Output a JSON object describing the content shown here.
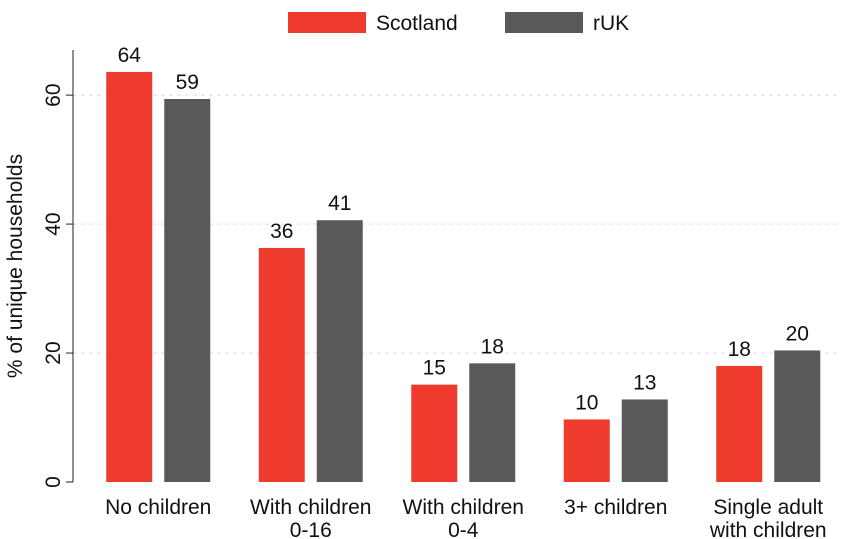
{
  "chart_data": {
    "type": "bar",
    "categories": [
      [
        "No children"
      ],
      [
        "With children",
        "0-16"
      ],
      [
        "With children",
        "0-4"
      ],
      [
        "3+ children"
      ],
      [
        "Single adult",
        "with children"
      ]
    ],
    "series": [
      {
        "name": "Scotland",
        "color": "#ee3b2e",
        "values": [
          63.6,
          36.3,
          15.1,
          9.7,
          18.0
        ],
        "value_labels": [
          "64",
          "36",
          "15",
          "10",
          "18"
        ]
      },
      {
        "name": "rUK",
        "color": "#595959",
        "values": [
          59.4,
          40.6,
          18.4,
          12.8,
          20.4
        ],
        "value_labels": [
          "59",
          "41",
          "18",
          "13",
          "20"
        ]
      }
    ],
    "y_label": "% of unique households",
    "ylim": [
      0,
      67
    ],
    "yticks": [
      0,
      20,
      40,
      60
    ],
    "grid": true,
    "legend": "top"
  }
}
